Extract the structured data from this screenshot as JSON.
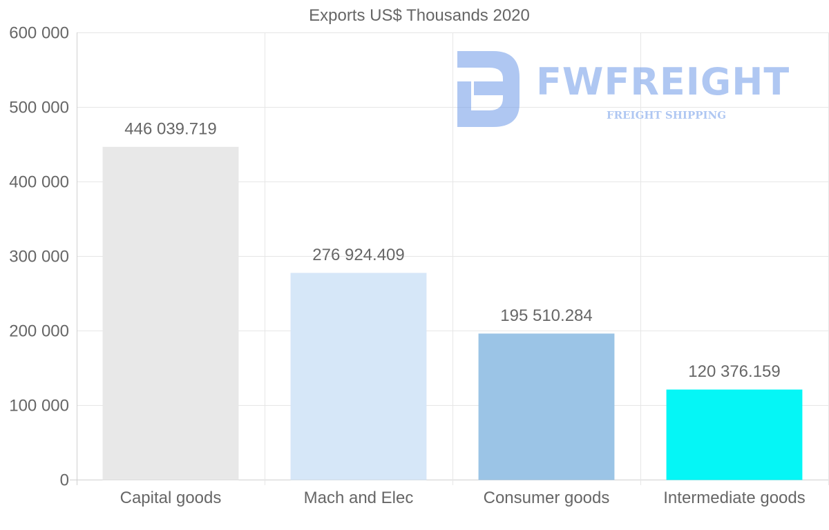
{
  "chart_data": {
    "type": "bar",
    "title": "Exports US$ Thousands 2020",
    "xlabel": "",
    "ylabel": "",
    "categories": [
      "Capital goods",
      "Mach and Elec",
      "Consumer goods",
      "Intermediate goods"
    ],
    "values": [
      446039.719,
      276924.409,
      195510.284,
      120376.159
    ],
    "value_labels": [
      "446 039.719",
      "276 924.409",
      "195 510.284",
      "120 376.159"
    ],
    "bar_colors": [
      "#e8e8e8",
      "#d6e7f8",
      "#9bc4e6",
      "#05f6f6"
    ],
    "ylim": [
      0,
      600000
    ],
    "yticks": [
      0,
      100000,
      200000,
      300000,
      400000,
      500000,
      600000
    ],
    "ytick_labels": [
      "0",
      "100 000",
      "200 000",
      "300 000",
      "400 000",
      "500 000",
      "600 000"
    ],
    "grid": true,
    "legend": "none"
  },
  "watermark": {
    "brand": "FWFREIGHT",
    "tagline": "FREIGHT SHIPPING",
    "color": "#6f9be8"
  }
}
